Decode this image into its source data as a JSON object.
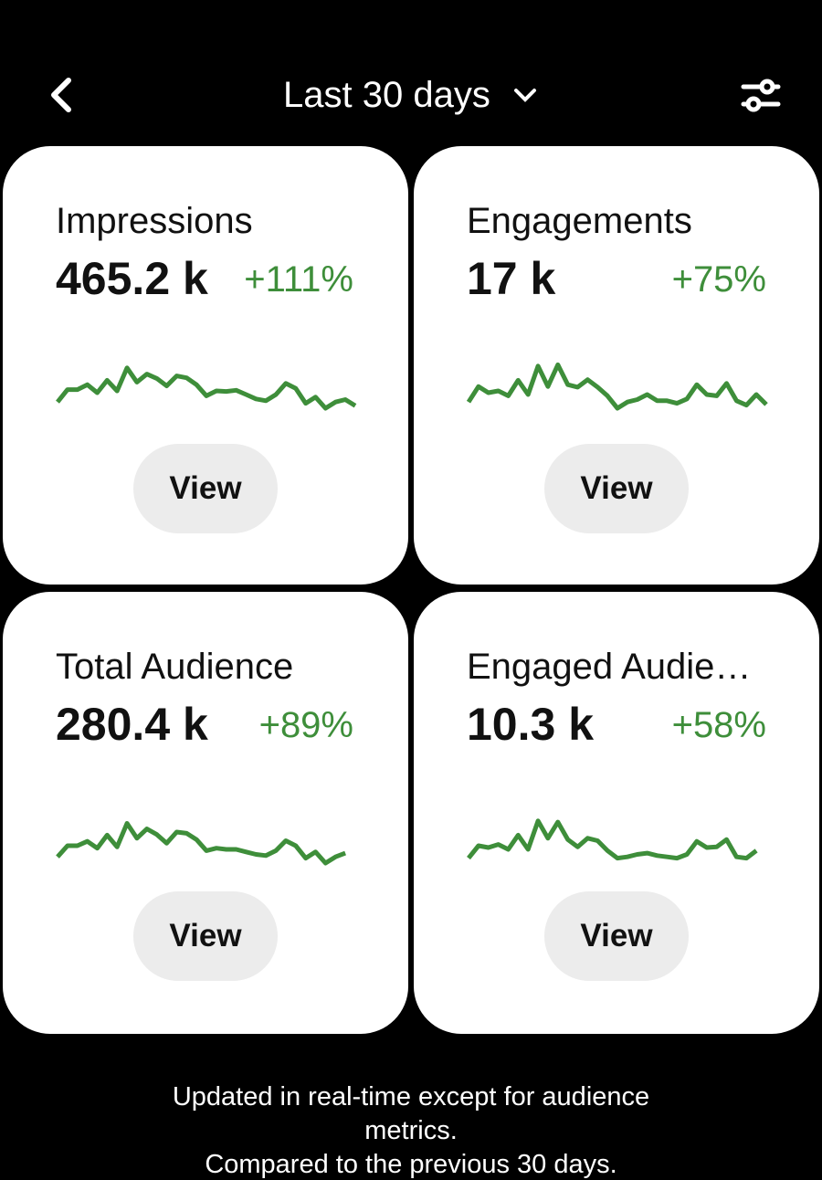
{
  "header": {
    "title": "Last 30 days"
  },
  "cards": [
    {
      "title": "Impressions",
      "value": "465.2 k",
      "change": "+111%",
      "button": "View",
      "trend": [
        10,
        30,
        30,
        38,
        25,
        45,
        28,
        65,
        42,
        55,
        48,
        36,
        52,
        49,
        38,
        20,
        28,
        27,
        29,
        22,
        15,
        12,
        22,
        40,
        32,
        8,
        18,
        0,
        10,
        14,
        4
      ]
    },
    {
      "title": "Engagements",
      "value": "17 k",
      "change": "+75%",
      "button": "View",
      "trend": [
        10,
        35,
        25,
        28,
        20,
        45,
        22,
        68,
        35,
        70,
        38,
        34,
        46,
        34,
        20,
        0,
        10,
        14,
        22,
        12,
        12,
        8,
        15,
        38,
        22,
        20,
        40,
        12,
        5,
        22,
        6
      ]
    },
    {
      "title": "Total Audience",
      "value": "280.4 k",
      "change": "+89%",
      "button": "View",
      "trend": [
        10,
        28,
        28,
        35,
        24,
        45,
        26,
        64,
        40,
        55,
        46,
        32,
        50,
        48,
        38,
        20,
        24,
        22,
        22,
        18,
        14,
        12,
        20,
        36,
        28,
        8,
        18,
        0,
        10,
        16
      ]
    },
    {
      "title": "Engaged Audie…",
      "value": "10.3 k",
      "change": "+58%",
      "button": "View",
      "trend": [
        8,
        28,
        25,
        30,
        22,
        45,
        22,
        68,
        40,
        66,
        38,
        26,
        40,
        36,
        20,
        8,
        10,
        14,
        16,
        12,
        10,
        8,
        14,
        35,
        25,
        26,
        38,
        10,
        8,
        20
      ]
    }
  ],
  "footer": {
    "lines": [
      "Updated in real-time except for audience",
      "metrics.",
      "Compared to the previous 30 days."
    ]
  }
}
